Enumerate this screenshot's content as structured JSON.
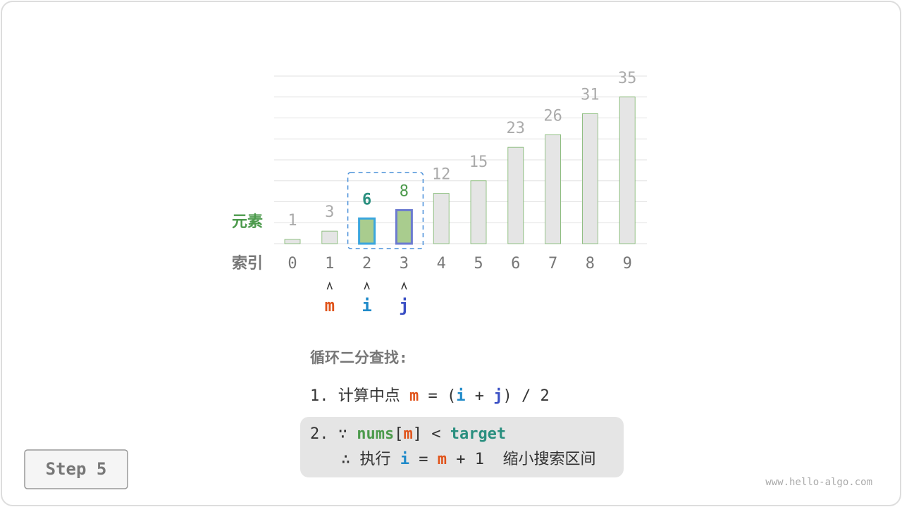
{
  "row_labels": {
    "elements": "元素",
    "indices": "索引"
  },
  "array": {
    "values": [
      1,
      3,
      6,
      8,
      12,
      15,
      23,
      26,
      31,
      35
    ],
    "indices": [
      0,
      1,
      2,
      3,
      4,
      5,
      6,
      7,
      8,
      9
    ],
    "scale": [
      0,
      40
    ],
    "grid": [
      0,
      5,
      10,
      15,
      20,
      25,
      30,
      35,
      40
    ]
  },
  "pointers": [
    {
      "name": "m",
      "index": 1,
      "color": "#e0531a"
    },
    {
      "name": "i",
      "index": 2,
      "color": "#1f8ac9"
    },
    {
      "name": "j",
      "index": 3,
      "color": "#3a4fc4"
    }
  ],
  "steps": {
    "title": "循环二分查找:",
    "lines": [
      [
        {
          "text": "1. 计算中点 ",
          "color": "#333"
        },
        {
          "text": "m",
          "color": "#e0531a",
          "bold": true
        },
        {
          "text": " = (",
          "color": "#333"
        },
        {
          "text": "i",
          "color": "#1f8ac9",
          "bold": true
        },
        {
          "text": " + ",
          "color": "#333"
        },
        {
          "text": "j",
          "color": "#3a4fc4",
          "bold": true
        },
        {
          "text": ") / 2",
          "color": "#333"
        }
      ],
      [
        {
          "text": "2. ∵ ",
          "color": "#333"
        },
        {
          "text": "nums",
          "color": "#4c9a4c",
          "bold": true
        },
        {
          "text": "[",
          "color": "#333"
        },
        {
          "text": "m",
          "color": "#e0531a",
          "bold": true
        },
        {
          "text": "] < ",
          "color": "#333"
        },
        {
          "text": "target",
          "color": "#2a8f7f",
          "bold": true
        }
      ],
      [
        {
          "text": "∴ 执行 ",
          "color": "#333"
        },
        {
          "text": "i",
          "color": "#1f8ac9",
          "bold": true
        },
        {
          "text": " = ",
          "color": "#333"
        },
        {
          "text": "m",
          "color": "#e0531a",
          "bold": true
        },
        {
          "text": " + 1  缩小搜索区间",
          "color": "#333"
        }
      ]
    ]
  },
  "step_button": "Step 5",
  "watermark": "www.hello-algo.com"
}
